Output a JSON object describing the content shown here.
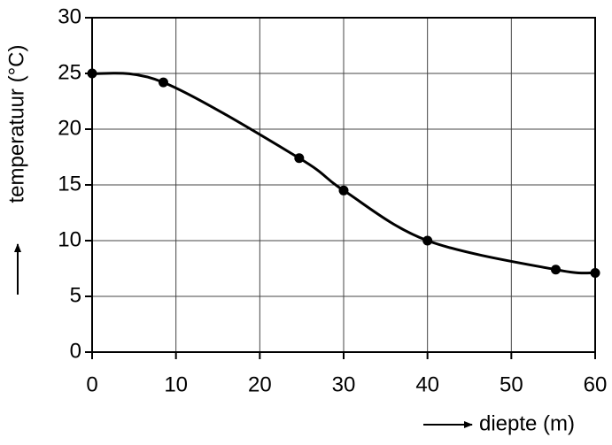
{
  "chart_data": {
    "type": "line",
    "x_label": "diepte (m)",
    "y_label": "temperatuur (°C)",
    "x": [
      0,
      8.5,
      24.7,
      30,
      40,
      55.3,
      60
    ],
    "values": [
      25,
      24.2,
      17.4,
      14.5,
      10,
      7.4,
      7.1
    ],
    "color": "#000000",
    "xlim": [
      0,
      60
    ],
    "xticks": [
      0,
      10,
      20,
      30,
      40,
      50,
      60
    ],
    "ylim": [
      0,
      30
    ],
    "yticks": [
      0,
      5,
      10,
      15,
      20,
      25,
      30
    ],
    "grid": true
  }
}
